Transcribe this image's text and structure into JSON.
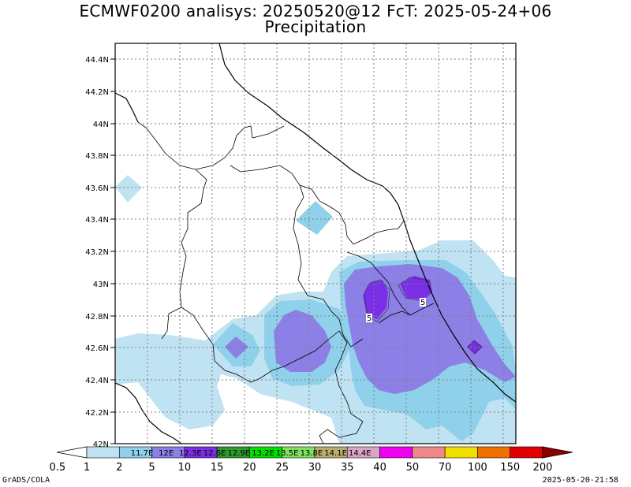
{
  "title_line1": "ECMWF0200 analisys: 20250520@12 FcT: 2025-05-24+06",
  "title_line2": "Precipitation",
  "lat_labels": [
    "44.4N",
    "44.2N",
    "44N",
    "43.8N",
    "43.6N",
    "43.4N",
    "43.2N",
    "43N",
    "42.8N",
    "42.6N",
    "42.4N",
    "42.2N",
    "42N"
  ],
  "lon_labels": [
    "11.7E",
    "12E",
    "12.3E",
    "12.6E",
    "12.9E",
    "13.2E",
    "13.5E",
    "13.8E",
    "14.1E",
    "14.4E"
  ],
  "colorbar": {
    "values": [
      "0.5",
      "1",
      "2",
      "5",
      "10",
      "15",
      "20",
      "25",
      "30",
      "35",
      "40",
      "50",
      "70",
      "100",
      "150",
      "200"
    ],
    "colors": [
      "#ffffff",
      "#bfe3f2",
      "#8fd1ea",
      "#8c7fe6",
      "#7a2ee6",
      "#2c9a2c",
      "#00e000",
      "#80e060",
      "#b8ac6e",
      "#d9a6c8",
      "#f000f0",
      "#f08a8a",
      "#f0e000",
      "#f07000",
      "#e00000",
      "#8c0000"
    ]
  },
  "contour_label": "5",
  "credit": "GrADS/COLA",
  "timestamp": "2025-05-20-21:58",
  "map_colors": {
    "light_blue": "#bfe3f2",
    "medium_blue": "#8fd1ea",
    "lavender": "#8c7fe6",
    "purple": "#7a2ee6"
  }
}
